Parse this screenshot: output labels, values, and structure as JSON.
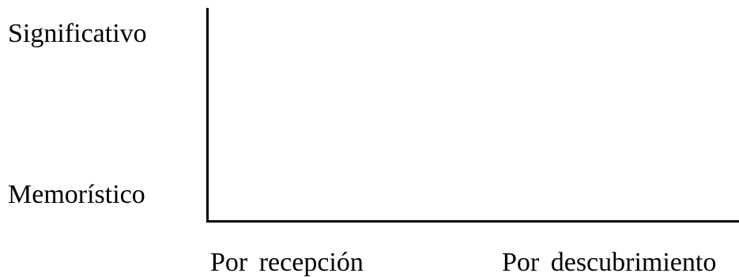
{
  "y_axis": {
    "top_label": "Significativo",
    "bottom_label": "Memorístico"
  },
  "x_axis": {
    "left_label": "Por recepción",
    "right_label": "Por descubrimiento"
  }
}
